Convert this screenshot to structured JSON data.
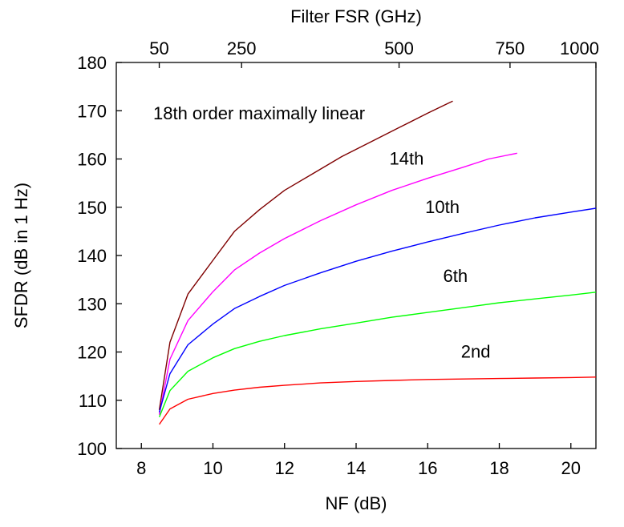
{
  "chart_data": {
    "type": "line",
    "xlabel": "NF (dB)",
    "ylabel": "SFDR (dB in 1 Hz)",
    "top_xlabel": "Filter FSR (GHz)",
    "xlim": [
      7.3,
      20.7
    ],
    "ylim": [
      100,
      180
    ],
    "x_ticks": [
      8,
      10,
      12,
      14,
      16,
      18,
      20
    ],
    "y_ticks": [
      100,
      110,
      120,
      130,
      140,
      150,
      160,
      170,
      180
    ],
    "top_ticks": [
      {
        "label": "50",
        "nf": 8.5
      },
      {
        "label": "250",
        "nf": 10.8
      },
      {
        "label": "500",
        "nf": 15.2
      },
      {
        "label": "750",
        "nf": 18.3
      },
      {
        "label": "1000",
        "nf": 20.7
      }
    ],
    "grid": false,
    "series": [
      {
        "color": "#7f0000",
        "x": [
          8.5,
          8.8,
          9.3,
          10.0,
          10.6,
          11.3,
          12.0,
          12.8,
          13.6,
          14.4,
          15.2,
          16.0,
          16.7
        ],
        "y": [
          108,
          122,
          132,
          139,
          145,
          149.5,
          153.5,
          157,
          160.5,
          163.5,
          166.5,
          169.5,
          172
        ]
      },
      {
        "color": "#ff00ff",
        "x": [
          8.5,
          8.8,
          9.3,
          10.0,
          10.6,
          11.3,
          12.0,
          13.0,
          14.0,
          15.0,
          16.0,
          17.0,
          17.7,
          18.5
        ],
        "y": [
          107,
          118.5,
          126.5,
          132.5,
          137,
          140.5,
          143.5,
          147.2,
          150.5,
          153.5,
          156,
          158.3,
          160,
          161.2
        ]
      },
      {
        "color": "#0000ff",
        "x": [
          8.5,
          8.8,
          9.3,
          10.0,
          10.6,
          11.3,
          12.0,
          13.0,
          14.0,
          15.0,
          16.0,
          17.0,
          18.0,
          19.0,
          20.0,
          20.7
        ],
        "y": [
          107.5,
          115.5,
          121.5,
          125.8,
          129,
          131.5,
          133.8,
          136.4,
          138.8,
          140.9,
          142.8,
          144.6,
          146.3,
          147.8,
          149,
          149.8
        ]
      },
      {
        "color": "#00ff00",
        "x": [
          8.5,
          8.8,
          9.3,
          10.0,
          10.6,
          11.3,
          12.0,
          13.0,
          14.0,
          15.0,
          16.0,
          17.0,
          18.0,
          19.0,
          20.0,
          20.7
        ],
        "y": [
          106.5,
          112,
          116,
          118.8,
          120.7,
          122.2,
          123.4,
          124.8,
          126,
          127.2,
          128.2,
          129.2,
          130.2,
          131,
          131.8,
          132.4
        ]
      },
      {
        "color": "#ff0000",
        "x": [
          8.5,
          8.8,
          9.3,
          10.0,
          10.6,
          11.3,
          12.0,
          13.0,
          14.0,
          15.0,
          16.0,
          17.0,
          18.0,
          19.0,
          20.0,
          20.7
        ],
        "y": [
          105,
          108.2,
          110.2,
          111.4,
          112.1,
          112.7,
          113.1,
          113.6,
          113.9,
          114.1,
          114.3,
          114.4,
          114.5,
          114.6,
          114.7,
          114.8
        ]
      }
    ],
    "annotations": [
      {
        "text": "18th order maximally linear",
        "x": 7.3,
        "y": 168.2
      },
      {
        "text": "14th",
        "x": 13.9,
        "y": 158.8
      },
      {
        "text": "10th",
        "x": 14.9,
        "y": 148.8
      },
      {
        "text": "6th",
        "x": 15.4,
        "y": 134.5
      },
      {
        "text": "2nd",
        "x": 15.9,
        "y": 118.8
      }
    ]
  }
}
